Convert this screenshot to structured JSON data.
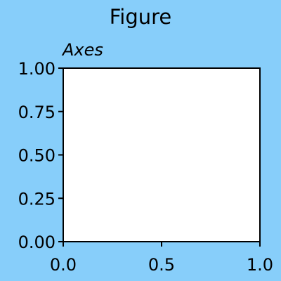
{
  "figure": {
    "title": "Figure",
    "background": "#87cefa"
  },
  "chart_data": {
    "type": "scatter",
    "title": "Axes",
    "xlabel": "",
    "ylabel": "",
    "xlim": [
      0.0,
      1.0
    ],
    "ylim": [
      0.0,
      1.0
    ],
    "xticks": [
      "0.0",
      "0.5",
      "1.0"
    ],
    "yticks": [
      "0.00",
      "0.25",
      "0.50",
      "0.75",
      "1.00"
    ],
    "series": [],
    "grid": false,
    "axes_background": "#ffffff"
  }
}
